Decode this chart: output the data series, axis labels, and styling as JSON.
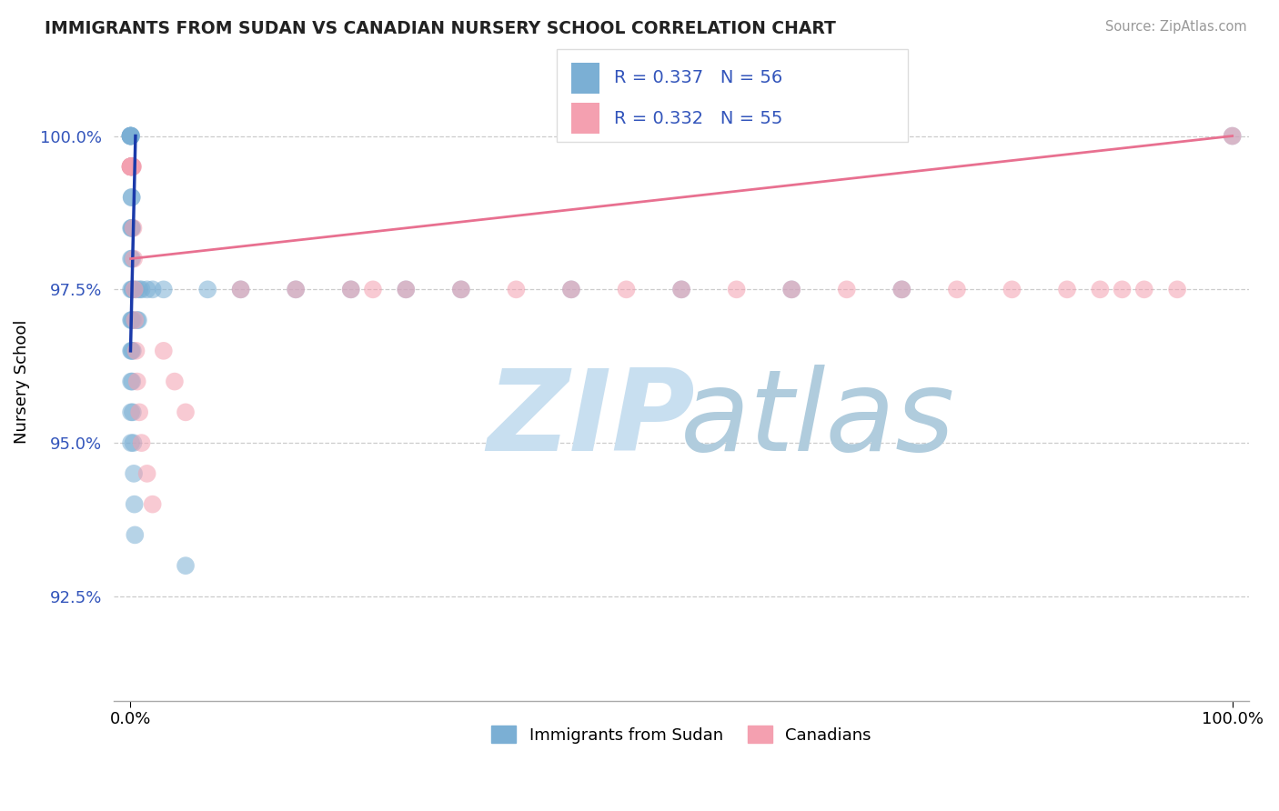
{
  "title": "IMMIGRANTS FROM SUDAN VS CANADIAN NURSERY SCHOOL CORRELATION CHART",
  "source_text": "Source: ZipAtlas.com",
  "ylabel": "Nursery School",
  "legend_label_blue": "Immigrants from Sudan",
  "legend_label_pink": "Canadians",
  "r_blue": 0.337,
  "n_blue": 56,
  "r_pink": 0.332,
  "n_pink": 55,
  "color_blue": "#7BAFD4",
  "color_pink": "#F4A0B0",
  "line_color_blue": "#1a3aaa",
  "line_color_pink": "#E87090",
  "watermark_color_zip": "#C8DFF0",
  "watermark_color_atlas": "#B0CCDD",
  "xlim": [
    -1.5,
    101.5
  ],
  "ylim": [
    90.8,
    101.2
  ],
  "yticks": [
    92.5,
    95.0,
    97.5,
    100.0
  ],
  "xticks": [
    0.0,
    100.0
  ],
  "grid_color": "#CCCCCC",
  "background_color": "#FFFFFF",
  "blue_x": [
    0.0,
    0.0,
    0.0,
    0.0,
    0.0,
    0.05,
    0.05,
    0.05,
    0.05,
    0.05,
    0.1,
    0.1,
    0.1,
    0.1,
    0.15,
    0.15,
    0.15,
    0.2,
    0.2,
    0.2,
    0.05,
    0.05,
    0.05,
    0.05,
    0.05,
    0.05,
    0.05,
    0.05,
    0.1,
    0.1,
    0.15,
    0.2,
    0.25,
    0.3,
    0.35,
    0.4,
    0.5,
    0.6,
    0.7,
    0.8,
    1.0,
    1.5,
    2.0,
    3.0,
    5.0,
    7.0,
    10.0,
    15.0,
    20.0,
    25.0,
    30.0,
    40.0,
    50.0,
    60.0,
    70.0,
    100.0
  ],
  "blue_y": [
    100.0,
    100.0,
    100.0,
    100.0,
    100.0,
    100.0,
    100.0,
    99.5,
    99.5,
    99.5,
    99.5,
    99.0,
    99.0,
    98.5,
    98.5,
    98.0,
    97.5,
    97.5,
    97.0,
    96.5,
    98.5,
    98.0,
    97.5,
    97.0,
    96.5,
    96.0,
    95.5,
    95.0,
    97.0,
    96.5,
    96.0,
    95.5,
    95.0,
    94.5,
    94.0,
    93.5,
    97.5,
    97.0,
    97.0,
    97.5,
    97.5,
    97.5,
    97.5,
    97.5,
    93.0,
    97.5,
    97.5,
    97.5,
    97.5,
    97.5,
    97.5,
    97.5,
    97.5,
    97.5,
    97.5,
    100.0
  ],
  "pink_x": [
    0.0,
    0.0,
    0.0,
    0.0,
    0.05,
    0.05,
    0.05,
    0.05,
    0.05,
    0.05,
    0.05,
    0.05,
    0.1,
    0.1,
    0.1,
    0.15,
    0.15,
    0.15,
    0.2,
    0.2,
    0.25,
    0.3,
    0.35,
    0.4,
    0.5,
    0.6,
    0.8,
    1.0,
    1.5,
    2.0,
    3.0,
    4.0,
    5.0,
    10.0,
    15.0,
    20.0,
    22.0,
    25.0,
    30.0,
    35.0,
    40.0,
    45.0,
    50.0,
    55.0,
    60.0,
    65.0,
    70.0,
    75.0,
    80.0,
    85.0,
    88.0,
    90.0,
    92.0,
    95.0,
    100.0
  ],
  "pink_y": [
    99.5,
    99.5,
    99.5,
    99.5,
    99.5,
    99.5,
    99.5,
    99.5,
    99.5,
    99.5,
    99.5,
    99.5,
    99.5,
    99.5,
    99.5,
    99.5,
    99.5,
    99.5,
    99.5,
    99.5,
    98.5,
    98.0,
    97.5,
    97.0,
    96.5,
    96.0,
    95.5,
    95.0,
    94.5,
    94.0,
    96.5,
    96.0,
    95.5,
    97.5,
    97.5,
    97.5,
    97.5,
    97.5,
    97.5,
    97.5,
    97.5,
    97.5,
    97.5,
    97.5,
    97.5,
    97.5,
    97.5,
    97.5,
    97.5,
    97.5,
    97.5,
    97.5,
    97.5,
    97.5,
    100.0
  ],
  "trendline_blue_x0": 0.0,
  "trendline_blue_y0": 96.5,
  "trendline_blue_x1": 0.45,
  "trendline_blue_y1": 100.0,
  "trendline_pink_x0": 0.0,
  "trendline_pink_y0": 98.0,
  "trendline_pink_x1": 100.0,
  "trendline_pink_y1": 100.0
}
